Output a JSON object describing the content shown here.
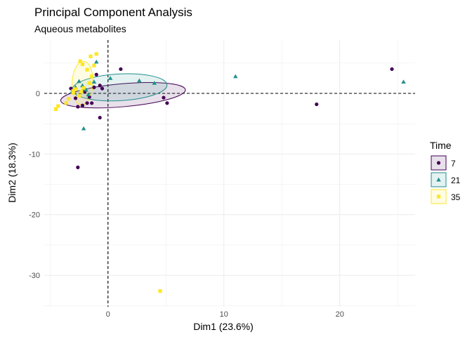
{
  "chart_data": {
    "type": "scatter",
    "title": "Principal Component Analysis",
    "subtitle": "Aqueous metabolites",
    "xlabel": "Dim1 (23.6%)",
    "ylabel": "Dim2 (18.3%)",
    "xlim": [
      -5.5,
      26.5
    ],
    "ylim": [
      -35.2,
      8.8
    ],
    "xticks": [
      0,
      10,
      20
    ],
    "yticks": [
      0,
      -10,
      -20,
      -30
    ],
    "grid": true,
    "legend": {
      "title": "Time",
      "position": "right"
    },
    "series": [
      {
        "name": "7",
        "shape": "circle",
        "color": "#440154",
        "ellipse": {
          "cx": 1.3,
          "cy": -0.3,
          "rx": 5.4,
          "ry": 1.9,
          "angle": -5
        },
        "points": [
          [
            -3.2,
            0.8
          ],
          [
            -2.8,
            -0.8
          ],
          [
            -2.6,
            -2.2
          ],
          [
            -2.2,
            -2.0
          ],
          [
            -2.0,
            0.3
          ],
          [
            -1.8,
            -1.6
          ],
          [
            -1.6,
            -0.6
          ],
          [
            -1.4,
            -1.6
          ],
          [
            -1.2,
            1.0
          ],
          [
            -1.0,
            3.1
          ],
          [
            -0.7,
            1.3
          ],
          [
            -0.5,
            0.8
          ],
          [
            -0.7,
            -4.0
          ],
          [
            1.1,
            4.0
          ],
          [
            4.8,
            -0.7
          ],
          [
            5.1,
            -1.6
          ],
          [
            18.0,
            -1.8
          ],
          [
            24.5,
            4.0
          ],
          [
            -2.6,
            -12.2
          ]
        ]
      },
      {
        "name": "21",
        "shape": "triangle",
        "color": "#21908C",
        "ellipse": {
          "cx": 1.0,
          "cy": 1.0,
          "rx": 4.1,
          "ry": 2.2,
          "angle": -3
        },
        "points": [
          [
            -3.1,
            0.3
          ],
          [
            -2.8,
            1.0
          ],
          [
            -2.5,
            2.0
          ],
          [
            -2.2,
            1.3
          ],
          [
            -1.9,
            0.6
          ],
          [
            -1.7,
            -0.2
          ],
          [
            -1.2,
            1.9
          ],
          [
            -1.0,
            5.2
          ],
          [
            0.2,
            2.5
          ],
          [
            2.7,
            2.1
          ],
          [
            4.0,
            1.7
          ],
          [
            -2.1,
            -5.8
          ],
          [
            11.0,
            2.8
          ],
          [
            25.5,
            1.9
          ]
        ]
      },
      {
        "name": "35",
        "shape": "square",
        "color": "#FDE725",
        "ellipse": {
          "cx": -2.2,
          "cy": 1.7,
          "rx": 0.9,
          "ry": 3.6,
          "angle": 3
        },
        "points": [
          [
            -4.5,
            -2.6
          ],
          [
            -4.3,
            -2.1
          ],
          [
            -3.6,
            -1.6
          ],
          [
            -3.4,
            -0.9
          ],
          [
            -3.0,
            0.4
          ],
          [
            -2.8,
            0.7
          ],
          [
            -2.5,
            -0.4
          ],
          [
            -2.3,
            0.3
          ],
          [
            -2.1,
            0.9
          ],
          [
            -1.8,
            3.9
          ],
          [
            -1.6,
            1.7
          ],
          [
            -1.4,
            2.8
          ],
          [
            -1.2,
            4.6
          ],
          [
            -1.0,
            6.5
          ],
          [
            -1.5,
            6.1
          ],
          [
            -2.2,
            4.8
          ],
          [
            -2.4,
            5.3
          ],
          [
            -3.0,
            0.1
          ],
          [
            4.5,
            -32.6
          ]
        ]
      }
    ]
  }
}
